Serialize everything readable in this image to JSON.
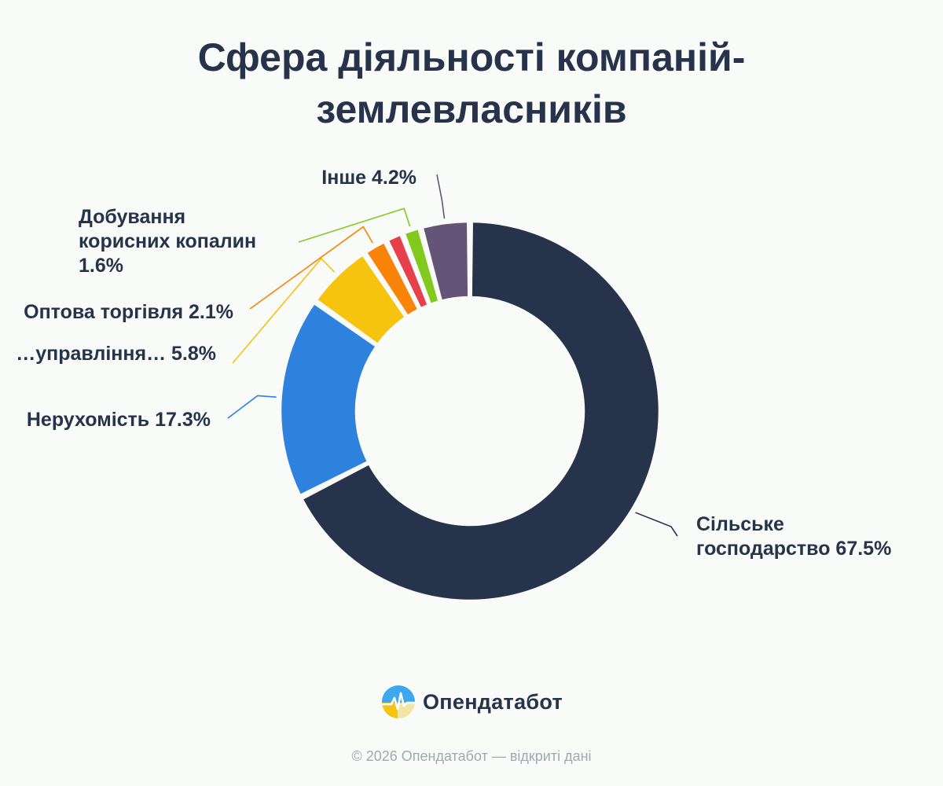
{
  "title_lines": [
    "Сфера діяльності компаній-",
    "землевласників"
  ],
  "chart_data": {
    "type": "pie",
    "donut": true,
    "series": [
      {
        "name": "Сільське господарство",
        "value": 67.5,
        "color": "#27324b"
      },
      {
        "name": "Нерухомість",
        "value": 17.3,
        "color": "#2e81dd"
      },
      {
        "name": "…управління…",
        "value": 5.8,
        "color": "#f6c30f"
      },
      {
        "name": "Оптова торгівля",
        "value": 2.1,
        "color": "#f98408"
      },
      {
        "name": "",
        "value": 1.5,
        "color": "#e5404b"
      },
      {
        "name": "Добування корисних копалин",
        "value": 1.6,
        "color": "#82c91e"
      },
      {
        "name": "Інше",
        "value": 4.2,
        "color": "#645578"
      }
    ],
    "labels": [
      {
        "lines": [
          "Сільське",
          "господарство 67.5%"
        ]
      },
      {
        "lines": [
          "Нерухомість 17.3%"
        ]
      },
      {
        "lines": [
          "…управління… 5.8%"
        ]
      },
      {
        "lines": [
          "Оптова торгівля 2.1%"
        ]
      },
      null,
      {
        "lines": [
          "Добування",
          "корисних копалин",
          "1.6%"
        ]
      },
      {
        "lines": [
          "Інше 4.2%"
        ]
      }
    ]
  },
  "logo": {
    "text": "Опендатабот",
    "icon": "opendatabot-logo-icon"
  },
  "footer": "© 2026 Опендатабот — відкриті дані"
}
